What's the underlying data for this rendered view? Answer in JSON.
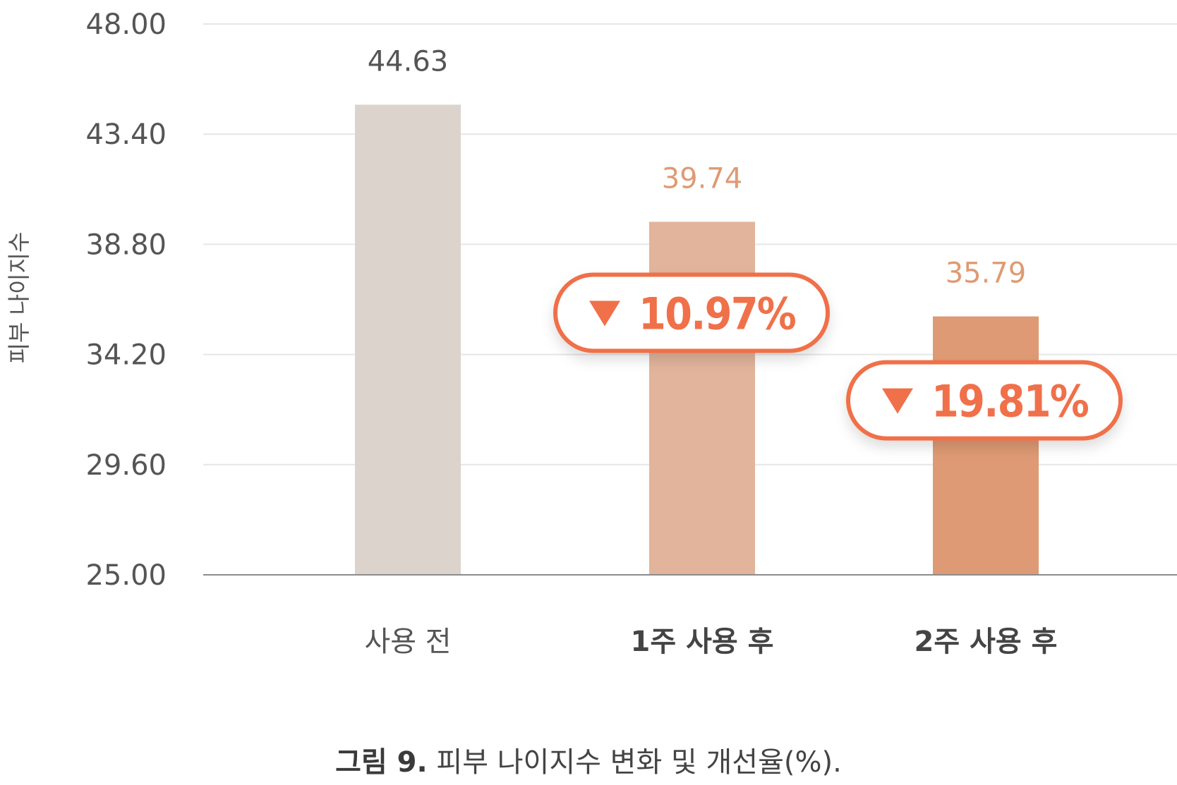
{
  "chart_data": {
    "type": "bar",
    "ylabel": "피부 나이지수",
    "xlabel": "",
    "ylim": [
      25.0,
      48.0
    ],
    "yticks": [
      "25.00",
      "29.60",
      "34.20",
      "38.80",
      "43.40",
      "48.00"
    ],
    "grid": true,
    "categories": [
      "사용 전",
      "1주 사용 후",
      "2주 사용 후"
    ],
    "values": [
      44.63,
      39.74,
      35.79
    ],
    "value_labels": [
      "44.63",
      "39.74",
      "35.79"
    ],
    "annotations": [
      {
        "category": "1주 사용 후",
        "text": "10.97%",
        "marker": "down-triangle"
      },
      {
        "category": "2주 사용 후",
        "text": "19.81%",
        "marker": "down-triangle"
      }
    ],
    "colors": {
      "bars": [
        "#dbd3cc",
        "#e1b49b",
        "#de9a74"
      ],
      "value_labels": [
        "#555555",
        "#df9a72",
        "#df9a72"
      ],
      "category_labels": [
        "#555555",
        "#444444",
        "#444444"
      ],
      "badge_accent": "#f0704a",
      "grid": "#e6e6e6",
      "axis": "#8c8c8c"
    }
  },
  "caption": {
    "bold": "그림 9.",
    "text": " 피부 나이지수 변화 및 개선율(%)."
  }
}
